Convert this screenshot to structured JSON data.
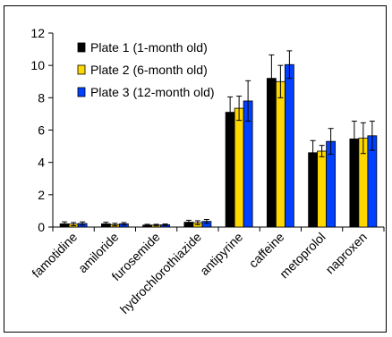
{
  "chart_data": {
    "type": "bar",
    "categories": [
      "famotidine",
      "amiloride",
      "furosemide",
      "hydrochlorothiazide",
      "antipyrine",
      "caffeine",
      "metoprolol",
      "naproxen"
    ],
    "series": [
      {
        "name": "Plate 1 (1-month old)",
        "color": "#000000",
        "values": [
          0.2,
          0.2,
          0.12,
          0.3,
          7.1,
          9.2,
          4.6,
          5.45
        ],
        "errors": [
          0.12,
          0.1,
          0.05,
          0.12,
          0.95,
          1.45,
          0.75,
          1.1
        ]
      },
      {
        "name": "Plate 2 (6-month old)",
        "color": "#ffd700",
        "values": [
          0.18,
          0.15,
          0.12,
          0.27,
          7.35,
          9.0,
          4.7,
          5.5
        ],
        "errors": [
          0.1,
          0.08,
          0.05,
          0.12,
          0.75,
          1.0,
          0.35,
          0.95
        ]
      },
      {
        "name": "Plate 3 (12-month old)",
        "color": "#0040ff",
        "values": [
          0.22,
          0.2,
          0.14,
          0.35,
          7.8,
          10.05,
          5.3,
          5.65
        ],
        "errors": [
          0.1,
          0.08,
          0.05,
          0.12,
          1.25,
          0.85,
          0.8,
          0.9
        ]
      }
    ],
    "yticks": [
      0,
      2,
      4,
      6,
      8,
      10,
      12
    ],
    "ylim": [
      0,
      12
    ],
    "title": "",
    "xlabel": "",
    "ylabel": "",
    "grid": false,
    "legend_position": "top-left"
  }
}
